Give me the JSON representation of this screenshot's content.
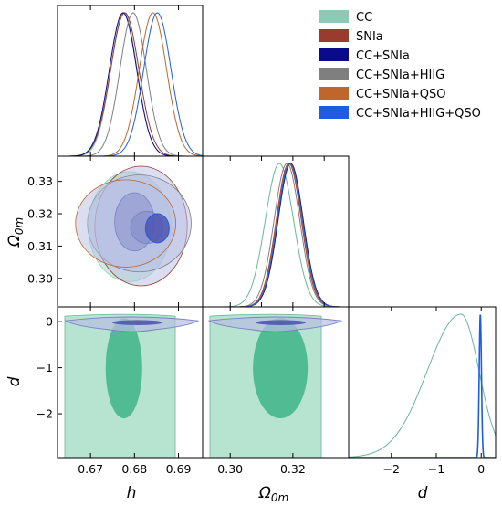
{
  "chart_data": {
    "type": "corner",
    "parameters": [
      "h",
      "Ω0m",
      "d"
    ],
    "axis_labels": {
      "h": "h",
      "omega_row_base": "Ω",
      "omega_row_sub": "0m",
      "omega_col_base": "Ω",
      "omega_col_sub": "0m",
      "d": "d"
    },
    "ranges": {
      "h": [
        0.6625,
        0.6955
      ],
      "omega": [
        0.2912,
        0.3378
      ],
      "d": [
        -2.95,
        0.32
      ]
    },
    "ticks": {
      "h": [
        0.67,
        0.68,
        0.69
      ],
      "omega": [
        0.3,
        0.31,
        0.32,
        0.33
      ],
      "omega_bottom": [
        0.3,
        0.32
      ],
      "d_left": [
        0,
        -1,
        -2
      ],
      "d_bottom": [
        -2,
        -1,
        0
      ]
    },
    "tick_labels": {
      "h": [
        "0.67",
        "0.68",
        "0.69"
      ],
      "omega": [
        "0.30",
        "0.31",
        "0.32",
        "0.33"
      ],
      "omega_bottom": [
        "0.30",
        "0.32"
      ],
      "d_left": [
        "0",
        "−1",
        "−2"
      ],
      "d_bottom": [
        "−2",
        "−1",
        "0"
      ]
    },
    "legend": [
      {
        "name": "CC",
        "color": "#7fc4ae"
      },
      {
        "name": "SNIa",
        "color": "#9b3a2e"
      },
      {
        "name": "CC+SNIa",
        "color": "#0a0a8c"
      },
      {
        "name": "CC+SNIa+HIIG",
        "color": "#7f7f7f"
      },
      {
        "name": "CC+SNIa+QSO",
        "color": "#c0662a"
      },
      {
        "name": "CC+SNIa+HIIG+QSO",
        "color": "#1f5ce0"
      }
    ],
    "legend_placement": "top-right",
    "series_colors": {
      "cc_line": "#6ab59b",
      "cc_fill": "#9fd9c2",
      "cc_core": "#3fb489",
      "joint_outer": "#b8bde3",
      "joint_inner": "#4e55b0",
      "joint_edge": "#7b82c4"
    },
    "marginals": {
      "h": [
        {
          "series": "CC",
          "mean": 0.6776,
          "sigma": 0.003
        },
        {
          "series": "SNIa",
          "mean": 0.6778,
          "sigma": 0.0032
        },
        {
          "series": "CC+SNIa",
          "mean": 0.6774,
          "sigma": 0.0031
        },
        {
          "series": "CC+SNIa+HIIG",
          "mean": 0.6797,
          "sigma": 0.003
        },
        {
          "series": "CC+SNIa+QSO",
          "mean": 0.6842,
          "sigma": 0.0031
        },
        {
          "series": "CC+SNIa+HIIG+QSO",
          "mean": 0.6852,
          "sigma": 0.0031
        }
      ],
      "omega": [
        {
          "series": "CC",
          "mean": 0.3157,
          "sigma": 0.0045
        },
        {
          "series": "SNIa",
          "mean": 0.3187,
          "sigma": 0.004
        },
        {
          "series": "CC+SNIa",
          "mean": 0.3193,
          "sigma": 0.004
        },
        {
          "series": "CC+SNIa+HIIG",
          "mean": 0.3181,
          "sigma": 0.0041
        },
        {
          "series": "CC+SNIa+QSO",
          "mean": 0.3189,
          "sigma": 0.004
        },
        {
          "series": "CC+SNIa+HIIG+QSO",
          "mean": 0.3191,
          "sigma": 0.004
        }
      ],
      "d": [
        {
          "series": "CC",
          "mean": -0.45,
          "sigma_left": 0.75,
          "sigma_right": 0.4
        },
        {
          "series": "CC+SNIa+HIIG+QSO",
          "mean": -0.02,
          "sigma_left": 0.025,
          "sigma_right": 0.025
        }
      ]
    },
    "contours_h_omega": {
      "outer": [
        {
          "cx": 0.6789,
          "cy": 0.316,
          "rx": 0.0094,
          "ry": 0.017
        },
        {
          "cx": 0.6815,
          "cy": 0.3162,
          "rx": 0.0105,
          "ry": 0.0185
        },
        {
          "cx": 0.6811,
          "cy": 0.317,
          "rx": 0.0118,
          "ry": 0.015
        },
        {
          "cx": 0.678,
          "cy": 0.317,
          "rx": 0.0114,
          "ry": 0.0135
        }
      ],
      "inner": [
        {
          "cx": 0.68,
          "cy": 0.3175,
          "rx": 0.0045,
          "ry": 0.009
        },
        {
          "cx": 0.6828,
          "cy": 0.3158,
          "rx": 0.0037,
          "ry": 0.005
        }
      ],
      "core": {
        "cx": 0.6852,
        "cy": 0.3155,
        "rx": 0.0027,
        "ry": 0.0045
      }
    },
    "contours_d": {
      "cc_outer": {
        "bottom": -3.0,
        "top": 0.12
      },
      "cc_inner": {
        "bottom": -2.1,
        "top": 0.08
      },
      "narrow_outer_half_height": 0.17,
      "narrow_inner_half_height": 0.07
    },
    "grid": false
  }
}
